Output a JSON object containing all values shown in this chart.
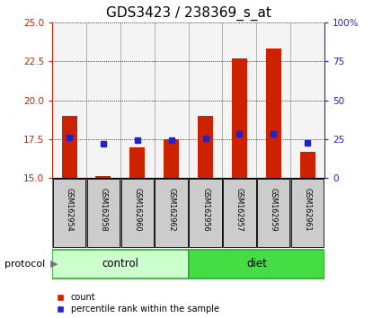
{
  "title": "GDS3423 / 238369_s_at",
  "samples": [
    "GSM162954",
    "GSM162958",
    "GSM162960",
    "GSM162962",
    "GSM162956",
    "GSM162957",
    "GSM162959",
    "GSM162961"
  ],
  "count_values": [
    19.0,
    15.15,
    17.0,
    17.5,
    19.0,
    22.7,
    23.3,
    16.7
  ],
  "percentile_values": [
    26.0,
    22.0,
    24.5,
    24.5,
    25.5,
    28.5,
    28.5,
    22.5
  ],
  "count_baseline": 15.0,
  "ylim_left": [
    15,
    25
  ],
  "ylim_right": [
    0,
    100
  ],
  "yticks_left": [
    15,
    17.5,
    20,
    22.5,
    25
  ],
  "yticks_right": [
    0,
    25,
    50,
    75,
    100
  ],
  "bar_color": "#cc2200",
  "dot_color": "#2222cc",
  "n_control": 4,
  "n_diet": 4,
  "control_label": "control",
  "diet_label": "diet",
  "protocol_label": "protocol",
  "control_color": "#ccffcc",
  "diet_color": "#44dd44",
  "sample_box_color": "#cccccc",
  "legend_count": "count",
  "legend_pct": "percentile rank within the sample",
  "title_fontsize": 11,
  "axis_label_color_left": "#cc2200",
  "axis_label_color_right": "#2222cc",
  "bar_width": 0.45
}
